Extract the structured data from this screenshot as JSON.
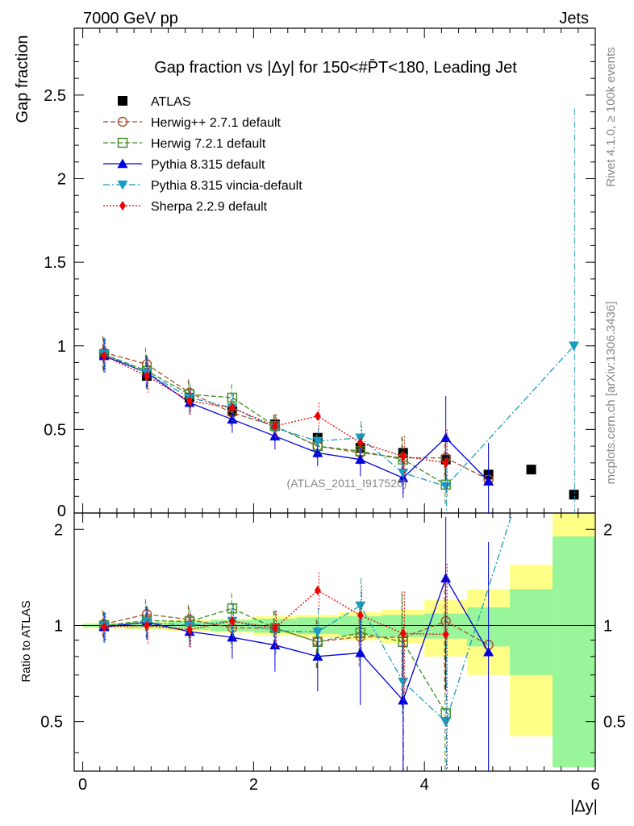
{
  "header": {
    "energy_label": "7000 GeV pp",
    "process_label": "Jets"
  },
  "side": {
    "rivet_label": "Rivet 4.1.0, ≥ 100k events",
    "mcplots_label": "mcplots.cern.ch [arXiv:1306.3436]"
  },
  "chart_data": {
    "type": "scatter",
    "title": "Gap fraction vs |Δy| for 150<#P̄T<180, Leading Jet",
    "watermark": "(ATLAS_2011_I917526)",
    "xlabel": "|Δy|",
    "ylabel": "Gap fraction",
    "ratio_ylabel": "Ratio to ATLAS",
    "xlim": [
      -0.1,
      6.0
    ],
    "ylim": [
      0,
      2.9
    ],
    "ratio_ylim": [
      0.35,
      2.25
    ],
    "x_ticks": [
      0,
      2,
      4,
      6
    ],
    "y_ticks": [
      0.5,
      1,
      1.5,
      2,
      2.5
    ],
    "y_tick_labels": [
      "0.5",
      "1",
      "1.5",
      "2",
      "2.5"
    ],
    "y_zero_label": "0",
    "ratio_ticks": [
      0.5,
      1,
      2
    ],
    "x": [
      0.25,
      0.75,
      1.25,
      1.75,
      2.25,
      2.75,
      3.25,
      3.75,
      4.25,
      4.75,
      5.25,
      5.75
    ],
    "reference": {
      "name": "ATLAS",
      "values": [
        0.95,
        0.82,
        0.69,
        0.61,
        0.53,
        0.45,
        0.39,
        0.36,
        0.32,
        0.23,
        0.26,
        0.11
      ],
      "ratio_band_inner": [
        0.01,
        0.02,
        0.03,
        0.04,
        0.05,
        0.06,
        0.07,
        0.08,
        0.09,
        0.14,
        0.3,
        0.9
      ],
      "ratio_band_outer": [
        0.02,
        0.03,
        0.04,
        0.05,
        0.07,
        0.08,
        0.1,
        0.12,
        0.2,
        0.3,
        0.55,
        1.5
      ]
    },
    "series": [
      {
        "name": "Herwig++ 2.7.1 default",
        "color": "#a0522d",
        "marker": "circle-open",
        "dash": "6 3",
        "values": [
          0.96,
          0.89,
          0.72,
          0.6,
          0.52,
          0.4,
          0.36,
          0.33,
          0.33,
          0.2,
          null,
          null
        ],
        "errors": [
          0.1,
          0.1,
          0.08,
          0.08,
          0.07,
          0.07,
          0.07,
          0.13,
          0.13,
          0.0,
          null,
          null
        ]
      },
      {
        "name": "Herwig 7.2.1 default",
        "color": "#3a8a1e",
        "marker": "square-open",
        "dash": "6 3",
        "values": [
          0.95,
          0.85,
          0.71,
          0.69,
          0.52,
          0.4,
          0.37,
          0.32,
          0.17,
          null,
          null,
          null
        ],
        "errors": [
          0.1,
          0.1,
          0.08,
          0.08,
          0.07,
          0.07,
          0.07,
          0.13,
          0.13,
          null,
          null,
          null
        ]
      },
      {
        "name": "Pythia 8.315 default",
        "color": "#0000dd",
        "marker": "triangle-up",
        "dash": "",
        "values": [
          0.94,
          0.84,
          0.66,
          0.56,
          0.46,
          0.36,
          0.32,
          0.21,
          0.45,
          0.19,
          null,
          null
        ],
        "errors": [
          0.1,
          0.1,
          0.07,
          0.08,
          0.08,
          0.08,
          0.1,
          0.12,
          0.25,
          0.23,
          null,
          null
        ]
      },
      {
        "name": "Pythia 8.315 vincia-default",
        "color": "#1a9bbf",
        "marker": "triangle-down",
        "dash": "8 3 2 3",
        "values": [
          0.95,
          0.84,
          0.69,
          0.63,
          0.51,
          0.43,
          0.45,
          0.24,
          0.16,
          null,
          null,
          1.0
        ],
        "errors": [
          0.1,
          0.1,
          0.08,
          0.08,
          0.08,
          0.08,
          0.1,
          0.12,
          0.15,
          null,
          null,
          1.42
        ]
      },
      {
        "name": "Sherpa 2.2.9 default",
        "color": "#ee0000",
        "marker": "diamond",
        "dash": "2 2",
        "values": [
          0.94,
          0.82,
          0.67,
          0.63,
          0.52,
          0.58,
          0.42,
          0.34,
          0.3,
          null,
          null,
          null
        ],
        "errors": [
          0.1,
          0.1,
          0.08,
          0.08,
          0.07,
          0.08,
          0.1,
          0.12,
          0.2,
          null,
          null,
          null
        ]
      }
    ]
  }
}
